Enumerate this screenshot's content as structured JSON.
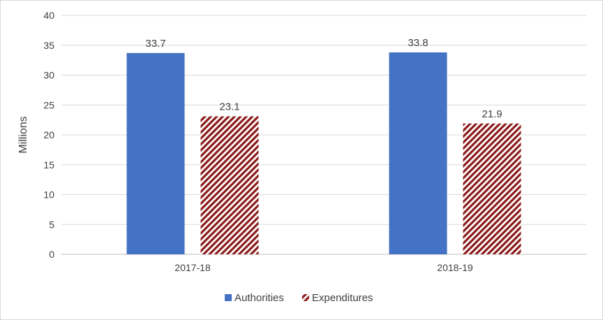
{
  "chart_data": {
    "type": "bar",
    "title": "",
    "xlabel": "",
    "ylabel": "Millions",
    "ylim": [
      0,
      40
    ],
    "yticks": [
      "0",
      "5",
      "10",
      "15",
      "20",
      "25",
      "30",
      "35",
      "40"
    ],
    "categories": [
      "2017-18",
      "2018-19"
    ],
    "series": [
      {
        "name": "Authorities",
        "values": [
          33.7,
          33.8
        ],
        "labels": [
          "33.7",
          "33.8"
        ],
        "color": "#4472c4",
        "pattern": "solid"
      },
      {
        "name": "Expenditures",
        "values": [
          23.1,
          21.9
        ],
        "labels": [
          "23.1",
          "21.9"
        ],
        "color": "#8b1a1a",
        "pattern": "diagonal-hatch"
      }
    ],
    "grid": true,
    "legend": "bottom"
  }
}
